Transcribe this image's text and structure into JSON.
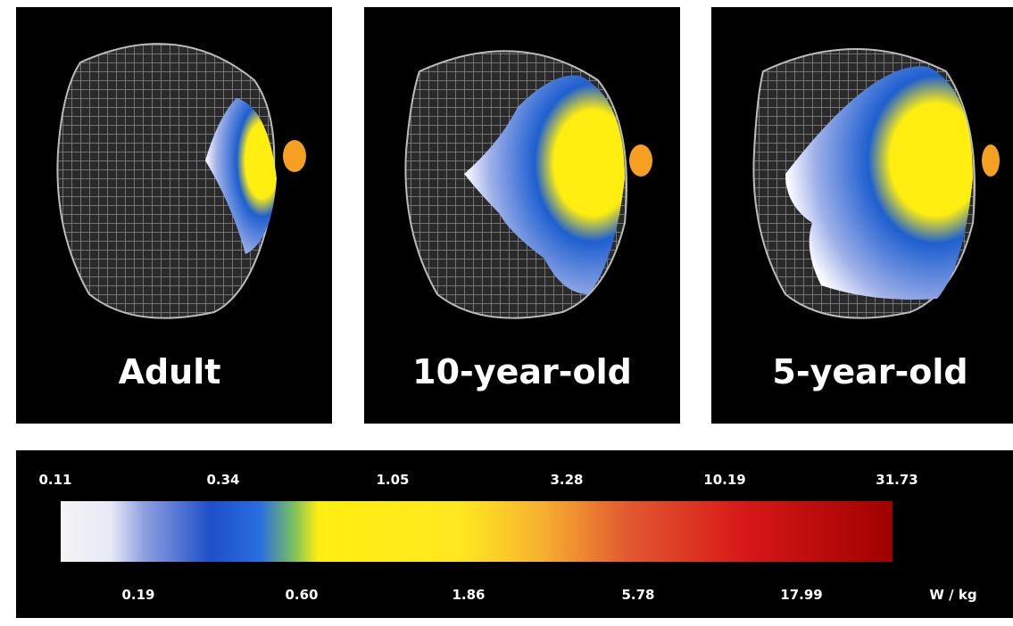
{
  "panels": [
    {
      "label": "Adult"
    },
    {
      "label": "10-year-old"
    },
    {
      "label": "5-year-old"
    }
  ],
  "colorbar": {
    "top_labels": [
      "0.11",
      "0.34",
      "1.05",
      "3.28",
      "10.19",
      "31.73"
    ],
    "bottom_labels": [
      "0.19",
      "0.60",
      "1.86",
      "5.78",
      "17.99"
    ],
    "unit": "W / kg"
  }
}
